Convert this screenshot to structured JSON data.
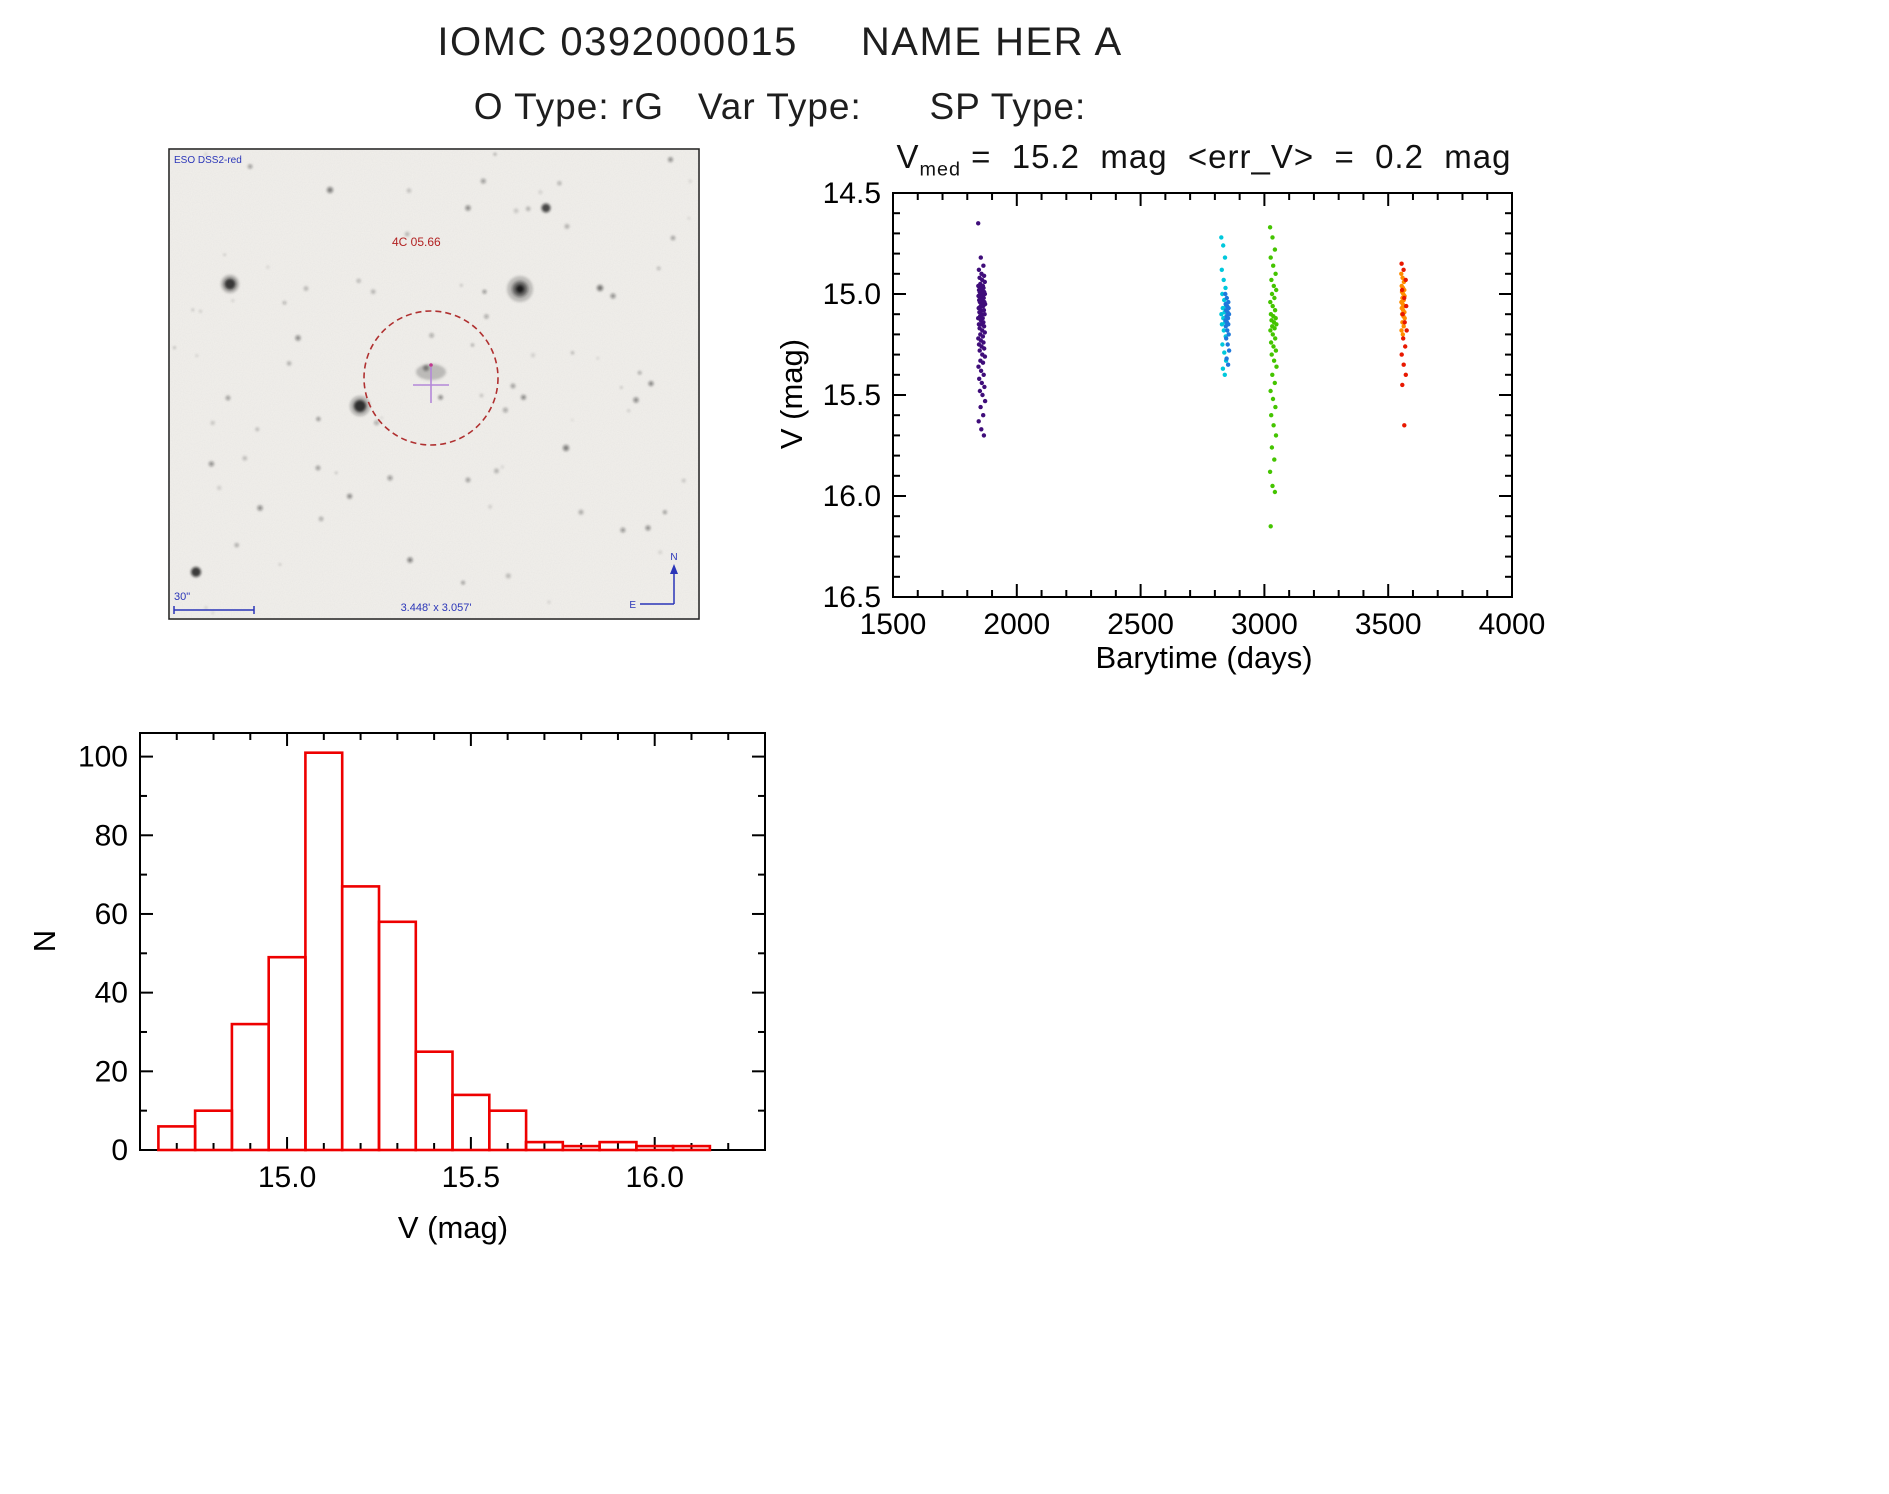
{
  "header": {
    "title": "IOMC 0392000015     NAME HER A",
    "subtitle": "O Type: rG   Var Type:      SP Type:"
  },
  "finder_chart": {
    "survey_label": "ESO DSS2-red",
    "source_label": "4C 05.66",
    "scale_label": "30\"",
    "fov_label": "3.448' x 3.057'",
    "compass_north": "N",
    "compass_east": "E",
    "aperture_color": "#b03030",
    "crosshair_color": "#b488d8",
    "annotation_color": "#2a35b8"
  },
  "chart_data": [
    {
      "type": "scatter",
      "title": {
        "prefix": "V",
        "subscript": "med",
        "rest": " =  15.2  mag  <err_V>  =  0.2  mag"
      },
      "xlabel": "Barytime (days)",
      "ylabel": "V (mag)",
      "xlim": [
        1500,
        4000
      ],
      "ylim": [
        14.5,
        16.5
      ],
      "y_axis_inverted": true,
      "grid": false,
      "legend": "none",
      "xticks": [
        1500,
        2000,
        2500,
        3000,
        3500,
        4000
      ],
      "xtick_labels": [
        "1500",
        "2000",
        "2500",
        "3000",
        "3500",
        "4000"
      ],
      "yticks": [
        14.5,
        15.0,
        15.5,
        16.0,
        16.5
      ],
      "ytick_labels": [
        "14.5",
        "15.0",
        "15.5",
        "16.0",
        "16.5"
      ],
      "x_minor_step": 100,
      "y_minor_step": 0.1,
      "series": [
        {
          "name": "epoch1-purple",
          "color": "#3f0d7a",
          "x_center": 1858,
          "x_spread": 14,
          "v": [
            14.65,
            14.82,
            14.86,
            14.88,
            14.9,
            14.91,
            14.92,
            14.93,
            14.94,
            14.95,
            14.96,
            14.96,
            14.97,
            14.97,
            14.98,
            14.98,
            14.99,
            14.99,
            15.0,
            15.0,
            15.0,
            15.01,
            15.01,
            15.02,
            15.02,
            15.03,
            15.03,
            15.04,
            15.04,
            15.05,
            15.05,
            15.06,
            15.06,
            15.07,
            15.08,
            15.08,
            15.09,
            15.1,
            15.1,
            15.11,
            15.12,
            15.12,
            15.13,
            15.14,
            15.15,
            15.15,
            15.16,
            15.17,
            15.18,
            15.19,
            15.2,
            15.21,
            15.22,
            15.23,
            15.24,
            15.25,
            15.26,
            15.27,
            15.28,
            15.3,
            15.31,
            15.33,
            15.34,
            15.36,
            15.38,
            15.4,
            15.42,
            15.44,
            15.46,
            15.48,
            15.5,
            15.53,
            15.56,
            15.6,
            15.63,
            15.67,
            15.7
          ]
        },
        {
          "name": "epoch2-cyan",
          "color": "#00c8dc",
          "x_center": 2836,
          "x_spread": 10,
          "v": [
            14.72,
            14.76,
            14.82,
            14.88,
            14.93,
            14.97,
            15.0,
            15.03,
            15.06,
            15.07,
            15.09,
            15.1,
            15.12,
            15.14,
            15.15,
            15.18,
            15.21,
            15.25,
            15.29,
            15.33,
            15.37,
            15.4
          ]
        },
        {
          "name": "epoch2-blue",
          "color": "#1e78dc",
          "x_center": 2850,
          "x_spread": 8,
          "v": [
            15.0,
            15.02,
            15.04,
            15.05,
            15.06,
            15.07,
            15.08,
            15.09,
            15.1,
            15.11,
            15.12,
            15.13,
            15.14,
            15.15,
            15.16,
            15.18,
            15.2,
            15.22,
            15.25,
            15.28,
            15.32,
            15.35
          ]
        },
        {
          "name": "epoch3-green",
          "color": "#44c400",
          "x_center": 3036,
          "x_spread": 13,
          "v": [
            14.67,
            14.72,
            14.78,
            14.82,
            14.86,
            14.9,
            14.93,
            14.96,
            14.98,
            15.0,
            15.02,
            15.04,
            15.06,
            15.08,
            15.1,
            15.11,
            15.12,
            15.13,
            15.14,
            15.15,
            15.16,
            15.17,
            15.18,
            15.2,
            15.22,
            15.24,
            15.26,
            15.28,
            15.3,
            15.33,
            15.36,
            15.4,
            15.44,
            15.48,
            15.52,
            15.56,
            15.6,
            15.65,
            15.7,
            15.76,
            15.82,
            15.88,
            15.95,
            15.98,
            16.15
          ]
        },
        {
          "name": "epoch4-orange",
          "color": "#ff8c00",
          "x_center": 3560,
          "x_spread": 7,
          "v": [
            14.9,
            14.92,
            14.94,
            14.96,
            14.97,
            14.98,
            14.99,
            15.0,
            15.01,
            15.02,
            15.03,
            15.04,
            15.05,
            15.06,
            15.07,
            15.08,
            15.09,
            15.1,
            15.11,
            15.12,
            15.14,
            15.16,
            15.18,
            15.2
          ]
        },
        {
          "name": "epoch4-red",
          "color": "#e81800",
          "x_center": 3565,
          "x_spread": 11,
          "v": [
            14.85,
            14.88,
            14.93,
            14.98,
            15.02,
            15.06,
            15.1,
            15.14,
            15.18,
            15.22,
            15.26,
            15.3,
            15.35,
            15.4,
            15.45,
            15.65
          ]
        }
      ]
    },
    {
      "type": "bar",
      "title": "",
      "xlabel": "V (mag)",
      "ylabel": "N",
      "xlim": [
        14.6,
        16.3
      ],
      "ylim": [
        0,
        106
      ],
      "grid": false,
      "legend": "none",
      "xticks": [
        15.0,
        15.5,
        16.0
      ],
      "xtick_labels": [
        "15.0",
        "15.5",
        "16.0"
      ],
      "yticks": [
        0,
        20,
        40,
        60,
        80,
        100
      ],
      "ytick_labels": [
        "0",
        "20",
        "40",
        "60",
        "80",
        "100"
      ],
      "x_minor_step": 0.1,
      "y_minor_step": 10,
      "bar_color": "#ee0000",
      "bin_start": 14.65,
      "bin_width": 0.1,
      "categories": [
        "14.65-14.75",
        "14.75-14.85",
        "14.85-14.95",
        "14.95-15.05",
        "15.05-15.15",
        "15.15-15.25",
        "15.25-15.35",
        "15.35-15.45",
        "15.45-15.55",
        "15.55-15.65",
        "15.65-15.75",
        "15.75-15.85",
        "15.85-15.95",
        "15.95-16.05",
        "16.05-16.15"
      ],
      "counts": [
        6,
        10,
        32,
        49,
        101,
        67,
        58,
        25,
        14,
        10,
        2,
        1,
        2,
        1,
        1
      ]
    }
  ]
}
